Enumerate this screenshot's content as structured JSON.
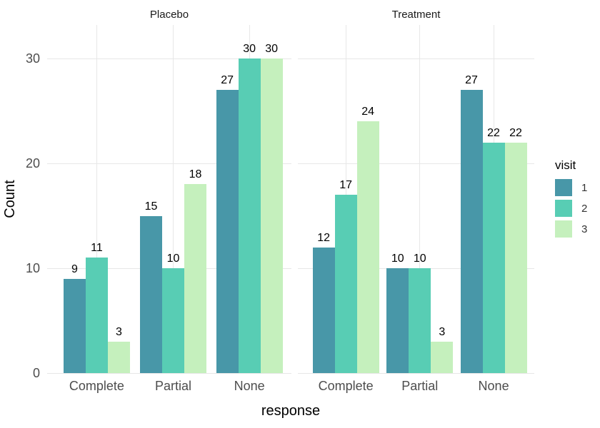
{
  "chart_data": {
    "type": "bar",
    "title": "",
    "xlabel": "response",
    "ylabel": "Count",
    "categories": [
      "Complete",
      "Partial",
      "None"
    ],
    "y_ticks": [
      0,
      10,
      20,
      30
    ],
    "ylim": [
      0,
      33
    ],
    "grid": true,
    "bar_value_labels": true,
    "legend": {
      "title": "visit",
      "position": "right",
      "entries": [
        {
          "label": "1",
          "color": "#4897A8"
        },
        {
          "label": "2",
          "color": "#58CDB4"
        },
        {
          "label": "3",
          "color": "#C5F0BD"
        }
      ]
    },
    "facets": [
      {
        "label": "Placebo",
        "series": [
          {
            "name": "1",
            "values": [
              9,
              15,
              27
            ]
          },
          {
            "name": "2",
            "values": [
              11,
              10,
              30
            ]
          },
          {
            "name": "3",
            "values": [
              3,
              18,
              30
            ]
          }
        ]
      },
      {
        "label": "Treatment",
        "series": [
          {
            "name": "1",
            "values": [
              12,
              10,
              27
            ]
          },
          {
            "name": "2",
            "values": [
              17,
              10,
              22
            ]
          },
          {
            "name": "3",
            "values": [
              24,
              3,
              22
            ]
          }
        ]
      }
    ],
    "background": "#FFFFFF"
  }
}
